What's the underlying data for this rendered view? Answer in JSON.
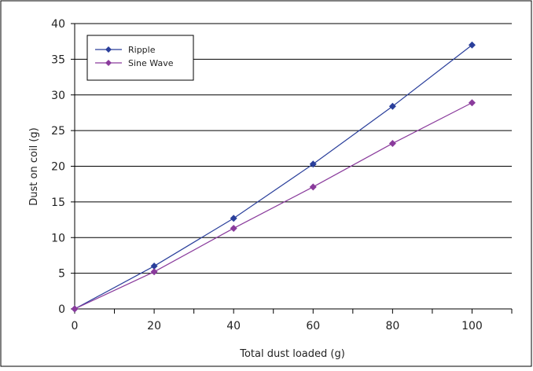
{
  "colors": {
    "series_1": "#2a3f9b",
    "series_2": "#8a3b9c",
    "gridline": "#000000",
    "axis": "#000000",
    "frame_border": "#000000",
    "background": "#ffffff"
  },
  "chart_data": {
    "type": "line",
    "title": "",
    "xlabel": "Total dust loaded (g)",
    "ylabel": "Dust on coil (g)",
    "xlim": [
      0,
      110
    ],
    "ylim": [
      0,
      40
    ],
    "x_ticks": [
      0,
      20,
      40,
      60,
      80,
      100
    ],
    "y_ticks": [
      0,
      5,
      10,
      15,
      20,
      25,
      30,
      35,
      40
    ],
    "grid": "horizontal",
    "legend_position": "top-left",
    "marker": "diamond",
    "series": [
      {
        "name": "Ripple",
        "color": "#2a3f9b",
        "points": [
          [
            0,
            0
          ],
          [
            20,
            6
          ],
          [
            40,
            12.7
          ],
          [
            60,
            20.3
          ],
          [
            80,
            28.4
          ],
          [
            100,
            37
          ]
        ]
      },
      {
        "name": "Sine Wave",
        "color": "#8a3b9c",
        "points": [
          [
            0,
            0
          ],
          [
            20,
            5.2
          ],
          [
            40,
            11.3
          ],
          [
            60,
            17.1
          ],
          [
            80,
            23.2
          ],
          [
            100,
            28.9
          ]
        ]
      }
    ]
  }
}
